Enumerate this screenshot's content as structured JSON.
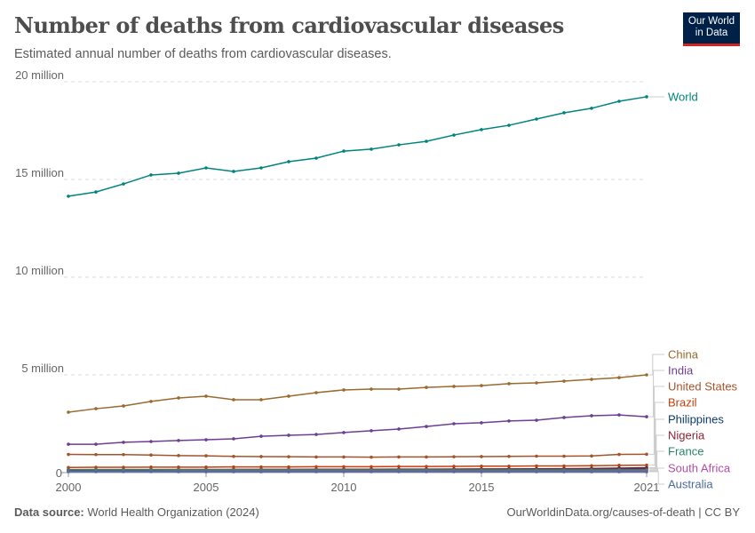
{
  "header": {
    "title": "Number of deaths from cardiovascular diseases",
    "subtitle": "Estimated annual number of deaths from cardiovascular diseases.",
    "logo": "Our World in Data"
  },
  "footer": {
    "source_label": "Data source:",
    "source": "World Health Organization (2024)",
    "right": "OurWorldinData.org/causes-of-death | CC BY"
  },
  "chart_data": {
    "type": "line",
    "title": "Number of deaths from cardiovascular diseases",
    "x": [
      2000,
      2001,
      2002,
      2003,
      2004,
      2005,
      2006,
      2007,
      2008,
      2009,
      2010,
      2011,
      2012,
      2013,
      2014,
      2015,
      2016,
      2017,
      2018,
      2019,
      2020,
      2021
    ],
    "xticks": [
      "2000",
      "2005",
      "2010",
      "2015",
      "2021"
    ],
    "yticks": [
      {
        "v": 0,
        "label": "0"
      },
      {
        "v": 5000000,
        "label": "5 million"
      },
      {
        "v": 10000000,
        "label": "10 million"
      },
      {
        "v": 15000000,
        "label": "15 million"
      },
      {
        "v": 20000000,
        "label": "20 million"
      }
    ],
    "ylim": [
      0,
      20000000
    ],
    "grid": "horizontal dashed",
    "legend": "right, line-end labels",
    "series": [
      {
        "name": "World",
        "color": "#00847e",
        "values": [
          14140000,
          14360000,
          14770000,
          15230000,
          15320000,
          15590000,
          15410000,
          15590000,
          15910000,
          16090000,
          16450000,
          16550000,
          16770000,
          16950000,
          17270000,
          17550000,
          17770000,
          18090000,
          18410000,
          18640000,
          19000000,
          19230000
        ]
      },
      {
        "name": "China",
        "color": "#9a6a2f",
        "values": [
          3090000,
          3270000,
          3410000,
          3640000,
          3820000,
          3910000,
          3730000,
          3730000,
          3910000,
          4090000,
          4230000,
          4270000,
          4270000,
          4360000,
          4410000,
          4450000,
          4550000,
          4590000,
          4680000,
          4770000,
          4860000,
          5000000
        ]
      },
      {
        "name": "India",
        "color": "#6d3e91",
        "values": [
          1450000,
          1450000,
          1550000,
          1590000,
          1640000,
          1680000,
          1730000,
          1860000,
          1910000,
          1950000,
          2050000,
          2140000,
          2230000,
          2360000,
          2500000,
          2550000,
          2640000,
          2680000,
          2820000,
          2910000,
          2950000,
          2860000
        ]
      },
      {
        "name": "United States",
        "color": "#a2552c",
        "values": [
          930000,
          920000,
          920000,
          900000,
          870000,
          860000,
          830000,
          820000,
          810000,
          800000,
          800000,
          790000,
          800000,
          800000,
          810000,
          820000,
          830000,
          840000,
          840000,
          850000,
          930000,
          940000
        ]
      },
      {
        "name": "Brazil",
        "color": "#c0410f",
        "values": [
          260000,
          270000,
          270000,
          280000,
          280000,
          280000,
          290000,
          290000,
          290000,
          300000,
          300000,
          300000,
          310000,
          310000,
          320000,
          330000,
          330000,
          340000,
          340000,
          350000,
          370000,
          380000
        ]
      },
      {
        "name": "Philippines",
        "color": "#0e3b6c",
        "values": [
          100000,
          105000,
          110000,
          115000,
          120000,
          125000,
          130000,
          135000,
          140000,
          145000,
          150000,
          155000,
          160000,
          170000,
          175000,
          180000,
          190000,
          195000,
          200000,
          210000,
          230000,
          250000
        ]
      },
      {
        "name": "Nigeria",
        "color": "#8b2331",
        "values": [
          150000,
          152000,
          154000,
          156000,
          158000,
          160000,
          162000,
          164000,
          166000,
          168000,
          170000,
          172000,
          174000,
          176000,
          178000,
          180000,
          182000,
          184000,
          186000,
          190000,
          195000,
          200000
        ]
      },
      {
        "name": "France",
        "color": "#2c8465",
        "values": [
          155000,
          154000,
          153000,
          152000,
          150000,
          148000,
          146000,
          144000,
          142000,
          141000,
          140000,
          139000,
          140000,
          140000,
          139000,
          140000,
          140000,
          141000,
          141000,
          142000,
          145000,
          142000
        ]
      },
      {
        "name": "South Africa",
        "color": "#b44da4",
        "values": [
          70000,
          72000,
          74000,
          76000,
          78000,
          80000,
          80000,
          80000,
          80000,
          79000,
          78000,
          78000,
          78000,
          78000,
          78000,
          79000,
          80000,
          80000,
          80000,
          80000,
          85000,
          90000
        ]
      },
      {
        "name": "Australia",
        "color": "#4c6a9c",
        "values": [
          50000,
          50000,
          49000,
          49000,
          48000,
          47000,
          47000,
          46000,
          46000,
          45000,
          45000,
          45000,
          45000,
          45000,
          45000,
          46000,
          46000,
          46000,
          46000,
          46000,
          46000,
          47000
        ]
      }
    ]
  }
}
